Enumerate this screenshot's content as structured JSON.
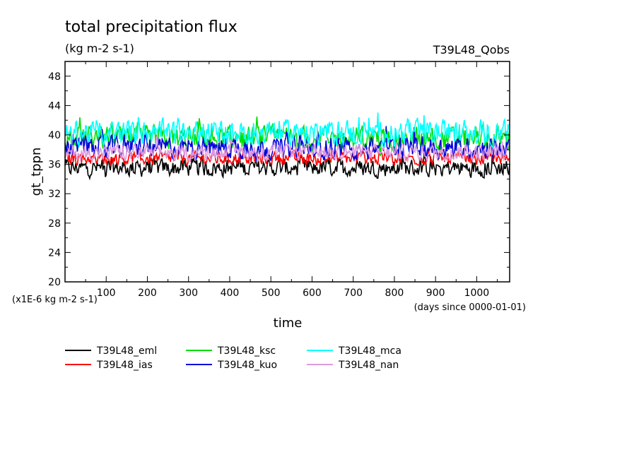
{
  "chart_data": {
    "type": "line",
    "title": "total precipitation flux",
    "subtitle": "(kg m-2 s-1)",
    "run_label": "T39L48_Qobs",
    "xlabel": "time",
    "x_units_note": "(days since 0000-01-01)",
    "ylabel": "gt_tppn",
    "y_scale_note": "(x1E-6 kg m-2 s-1)",
    "xlim": [
      0,
      1080
    ],
    "ylim": [
      20,
      50
    ],
    "xticks": [
      100,
      200,
      300,
      400,
      500,
      600,
      700,
      800,
      900,
      1000
    ],
    "yticks": [
      20,
      24,
      28,
      32,
      36,
      40,
      44,
      48
    ],
    "grid": false,
    "legend_position": "bottom",
    "series": [
      {
        "name": "T39L48_eml",
        "color": "#000000",
        "mean": 35.5,
        "amp": 1.6
      },
      {
        "name": "T39L48_ias",
        "color": "#ff0000",
        "mean": 36.8,
        "amp": 1.2
      },
      {
        "name": "T39L48_ksc",
        "color": "#00dd00",
        "mean": 39.5,
        "amp": 2.2
      },
      {
        "name": "T39L48_kuo",
        "color": "#0000dd",
        "mean": 38.3,
        "amp": 2.0
      },
      {
        "name": "T39L48_mca",
        "color": "#00ffff",
        "mean": 40.3,
        "amp": 2.3
      },
      {
        "name": "T39L48_nan",
        "color": "#dd99dd",
        "mean": 37.6,
        "amp": 1.4
      }
    ]
  }
}
